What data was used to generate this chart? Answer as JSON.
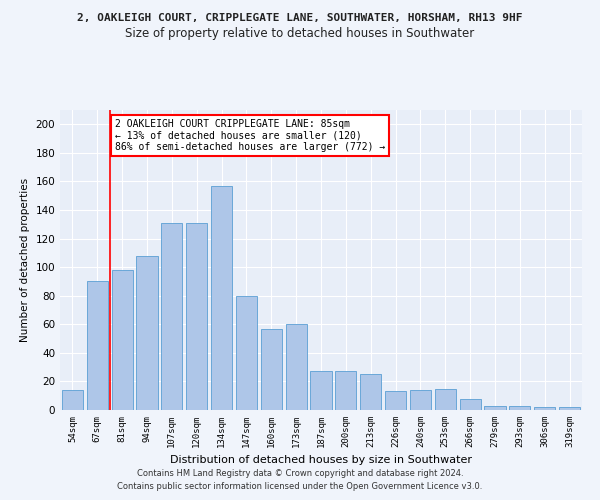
{
  "title": "2, OAKLEIGH COURT, CRIPPLEGATE LANE, SOUTHWATER, HORSHAM, RH13 9HF",
  "subtitle": "Size of property relative to detached houses in Southwater",
  "xlabel": "Distribution of detached houses by size in Southwater",
  "ylabel": "Number of detached properties",
  "categories": [
    "54sqm",
    "67sqm",
    "81sqm",
    "94sqm",
    "107sqm",
    "120sqm",
    "134sqm",
    "147sqm",
    "160sqm",
    "173sqm",
    "187sqm",
    "200sqm",
    "213sqm",
    "226sqm",
    "240sqm",
    "253sqm",
    "266sqm",
    "279sqm",
    "293sqm",
    "306sqm",
    "319sqm"
  ],
  "values": [
    14,
    90,
    98,
    108,
    131,
    131,
    157,
    80,
    57,
    60,
    27,
    27,
    25,
    13,
    14,
    15,
    8,
    3,
    3,
    2,
    2
  ],
  "bar_color": "#aec6e8",
  "bar_edge_color": "#5a9fd4",
  "bg_color": "#e8eef8",
  "grid_color": "#ffffff",
  "vline_color": "red",
  "vline_x": 1.5,
  "annotation_text": "2 OAKLEIGH COURT CRIPPLEGATE LANE: 85sqm\n← 13% of detached houses are smaller (120)\n86% of semi-detached houses are larger (772) →",
  "annotation_box_color": "#ffffff",
  "annotation_box_edge": "red",
  "ylim": [
    0,
    210
  ],
  "yticks": [
    0,
    20,
    40,
    60,
    80,
    100,
    120,
    140,
    160,
    180,
    200
  ],
  "footer1": "Contains HM Land Registry data © Crown copyright and database right 2024.",
  "footer2": "Contains public sector information licensed under the Open Government Licence v3.0.",
  "fig_bg": "#f0f4fb"
}
